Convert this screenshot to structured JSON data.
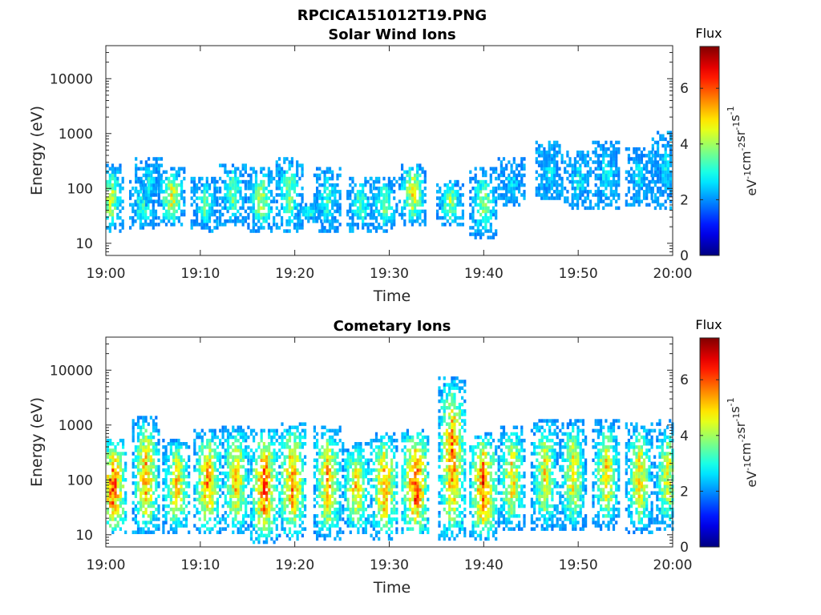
{
  "figure": {
    "title": "RPCICA151012T19.PNG"
  },
  "colorbar": {
    "label": "Flux",
    "unit_parts": [
      "eV",
      "-1",
      "cm",
      "-2",
      "sr",
      "-1",
      "s",
      "-1"
    ],
    "range": [
      0,
      7.5
    ],
    "ticks": [
      "0",
      "2",
      "4",
      "6"
    ],
    "tick_values": [
      0,
      2,
      4,
      6
    ],
    "colormap": "jet"
  },
  "chart_data": [
    {
      "type": "heatmap",
      "title": "Solar Wind Ions",
      "xlabel": "Time",
      "ylabel": "Energy (eV)",
      "x_ticks": [
        "19:00",
        "19:10",
        "19:20",
        "19:30",
        "19:40",
        "19:50",
        "20:00"
      ],
      "x_range": [
        "19:00",
        "20:00"
      ],
      "y_scale": "log",
      "y_ticks": [
        "10",
        "100",
        "1000",
        "10000"
      ],
      "y_range": [
        6,
        40000
      ],
      "z_range": [
        0,
        7.5
      ],
      "bursts": [
        {
          "t": 0.5,
          "e_lo": 20,
          "e_hi": 220,
          "peak": 4.8
        },
        {
          "t": 4.0,
          "e_lo": 22,
          "e_hi": 120,
          "peak": 4.0
        },
        {
          "t": 4.6,
          "e_lo": 60,
          "e_hi": 320,
          "peak": 3.2
        },
        {
          "t": 7.0,
          "e_lo": 25,
          "e_hi": 200,
          "peak": 5.0
        },
        {
          "t": 10.5,
          "e_lo": 20,
          "e_hi": 130,
          "peak": 3.8
        },
        {
          "t": 13.5,
          "e_lo": 25,
          "e_hi": 250,
          "peak": 4.0
        },
        {
          "t": 16.5,
          "e_lo": 20,
          "e_hi": 200,
          "peak": 4.6
        },
        {
          "t": 19.5,
          "e_lo": 20,
          "e_hi": 300,
          "peak": 4.2
        },
        {
          "t": 21.5,
          "e_lo": 30,
          "e_hi": 45,
          "peak": 3.5
        },
        {
          "t": 23.5,
          "e_lo": 20,
          "e_hi": 200,
          "peak": 3.6
        },
        {
          "t": 27.0,
          "e_lo": 20,
          "e_hi": 130,
          "peak": 3.8
        },
        {
          "t": 29.5,
          "e_lo": 20,
          "e_hi": 130,
          "peak": 4.2
        },
        {
          "t": 32.5,
          "e_lo": 25,
          "e_hi": 250,
          "peak": 5.0
        },
        {
          "t": 36.5,
          "e_lo": 25,
          "e_hi": 120,
          "peak": 4.4
        },
        {
          "t": 40.0,
          "e_lo": 15,
          "e_hi": 200,
          "peak": 4.3
        },
        {
          "t": 43.0,
          "e_lo": 60,
          "e_hi": 300,
          "peak": 3.0
        },
        {
          "t": 47.0,
          "e_lo": 70,
          "e_hi": 600,
          "peak": 3.0
        },
        {
          "t": 50.0,
          "e_lo": 50,
          "e_hi": 400,
          "peak": 3.2
        },
        {
          "t": 53.0,
          "e_lo": 50,
          "e_hi": 600,
          "peak": 3.2
        },
        {
          "t": 56.5,
          "e_lo": 60,
          "e_hi": 500,
          "peak": 3.0
        },
        {
          "t": 59.3,
          "e_lo": 50,
          "e_hi": 900,
          "peak": 3.0
        }
      ]
    },
    {
      "type": "heatmap",
      "title": "Cometary Ions",
      "xlabel": "Time",
      "ylabel": "Energy (eV)",
      "x_ticks": [
        "19:00",
        "19:10",
        "19:20",
        "19:30",
        "19:40",
        "19:50",
        "20:00"
      ],
      "x_range": [
        "19:00",
        "20:00"
      ],
      "y_scale": "log",
      "y_ticks": [
        "10",
        "100",
        "1000",
        "10000"
      ],
      "y_range": [
        6,
        40000
      ],
      "z_range": [
        0,
        7.5
      ],
      "bursts": [
        {
          "t": 0.8,
          "e_lo": 12,
          "e_hi": 450,
          "peak": 6.5
        },
        {
          "t": 4.3,
          "e_lo": 12,
          "e_hi": 1200,
          "peak": 5.8
        },
        {
          "t": 7.5,
          "e_lo": 12,
          "e_hi": 500,
          "peak": 5.5
        },
        {
          "t": 10.8,
          "e_lo": 12,
          "e_hi": 700,
          "peak": 6.0
        },
        {
          "t": 13.8,
          "e_lo": 12,
          "e_hi": 800,
          "peak": 5.6
        },
        {
          "t": 16.8,
          "e_lo": 8,
          "e_hi": 700,
          "peak": 6.5
        },
        {
          "t": 19.8,
          "e_lo": 10,
          "e_hi": 900,
          "peak": 6.2
        },
        {
          "t": 23.5,
          "e_lo": 10,
          "e_hi": 800,
          "peak": 5.8
        },
        {
          "t": 26.5,
          "e_lo": 12,
          "e_hi": 400,
          "peak": 5.5
        },
        {
          "t": 29.5,
          "e_lo": 10,
          "e_hi": 600,
          "peak": 6.0
        },
        {
          "t": 32.8,
          "e_lo": 12,
          "e_hi": 700,
          "peak": 6.8
        },
        {
          "t": 36.7,
          "e_lo": 10,
          "e_hi": 6500,
          "peak": 6.2
        },
        {
          "t": 40.0,
          "e_lo": 10,
          "e_hi": 600,
          "peak": 6.6
        },
        {
          "t": 43.0,
          "e_lo": 15,
          "e_hi": 800,
          "peak": 5.4
        },
        {
          "t": 46.5,
          "e_lo": 15,
          "e_hi": 1100,
          "peak": 5.2
        },
        {
          "t": 49.5,
          "e_lo": 15,
          "e_hi": 1000,
          "peak": 5.2
        },
        {
          "t": 53.0,
          "e_lo": 15,
          "e_hi": 1000,
          "peak": 5.4
        },
        {
          "t": 56.5,
          "e_lo": 12,
          "e_hi": 900,
          "peak": 5.3
        },
        {
          "t": 59.5,
          "e_lo": 15,
          "e_hi": 1000,
          "peak": 5.0
        }
      ]
    }
  ]
}
